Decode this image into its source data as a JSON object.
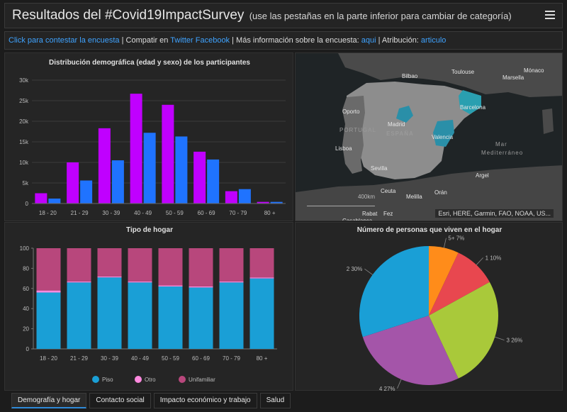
{
  "header": {
    "title": "Resultados del #Covid19ImpactSurvey",
    "subtitle": "(use las pestañas en la parte inferior para cambiar de categoría)"
  },
  "infobar": {
    "link_answer": "Click para contestar la encuesta",
    "sep1": " | Compatir en ",
    "link_twitter": "Twitter",
    "space": " ",
    "link_facebook": "Facebook",
    "sep2": " | Más información sobre la encuesta: ",
    "link_more": "aqui",
    "sep3": " | Atribución: ",
    "link_article": "articulo"
  },
  "map": {
    "labels": [
      "Toulouse",
      "Mónaco",
      "Bilbao",
      "Marsella",
      "Oporto",
      "Barcelona",
      "PORTUGAL",
      "Madrid",
      "ESPAÑA",
      "Valencia",
      "Lisboa",
      "Mar",
      "Mediterráneo",
      "Argel",
      "Sevilla",
      "Ceuta",
      "Orán",
      "Melilla",
      "Rabat",
      "Casablanca",
      "Fez"
    ],
    "scale": "400km",
    "attribution": "Esri, HERE, Garmin, FAO, NOAA, US..."
  },
  "chart_data": [
    {
      "type": "bar",
      "title": "Distribución demográfica (edad y sexo) de los participantes",
      "categories": [
        "18 - 20",
        "21 - 29",
        "30 - 39",
        "40 - 49",
        "50 - 59",
        "60 - 69",
        "70 - 79",
        "80 +"
      ],
      "series": [
        {
          "color": "#c000ff",
          "values": [
            2500,
            10000,
            18300,
            26700,
            24000,
            12600,
            3000,
            400
          ]
        },
        {
          "color": "#1f73ff",
          "values": [
            1200,
            5600,
            10500,
            17200,
            16300,
            10700,
            3500,
            400
          ]
        }
      ],
      "yticks": [
        "0",
        "5k",
        "10k",
        "15k",
        "20k",
        "25k",
        "30k"
      ],
      "ylim": [
        0,
        30000
      ],
      "grid": true
    },
    {
      "type": "bar",
      "stacked": true,
      "title": "Tipo de hogar",
      "categories": [
        "18 - 20",
        "21 - 29",
        "30 - 39",
        "40 - 49",
        "50 - 59",
        "60 - 69",
        "70 - 79",
        "80 +"
      ],
      "series": [
        {
          "name": "Piso",
          "color": "#1a9fd6",
          "values": [
            56,
            66,
            71,
            66,
            62,
            61,
            66,
            70
          ]
        },
        {
          "name": "Otro",
          "color": "#ff8adf",
          "values": [
            2,
            1,
            1,
            1,
            1,
            1,
            1,
            1
          ]
        },
        {
          "name": "Unifamiliar",
          "color": "#b8477c",
          "values": [
            42,
            33,
            28,
            33,
            37,
            38,
            33,
            29
          ]
        }
      ],
      "yticks": [
        "0",
        "20",
        "40",
        "60",
        "80",
        "100"
      ],
      "ylim": [
        0,
        100
      ],
      "legend": "bottom"
    },
    {
      "type": "pie",
      "title": "Número de personas que viven en el hogar",
      "slices": [
        {
          "label": "5+ 7%",
          "value": 7,
          "color": "#ff8c1a"
        },
        {
          "label": "1 10%",
          "value": 10,
          "color": "#e8474f"
        },
        {
          "label": "3 26%",
          "value": 26,
          "color": "#a9c93a"
        },
        {
          "label": "4 27%",
          "value": 27,
          "color": "#a455a9"
        },
        {
          "label": "2 30%",
          "value": 30,
          "color": "#1a9fd6"
        }
      ]
    }
  ],
  "tabs": [
    "Demografía y hogar",
    "Contacto social",
    "Impacto económico y trabajo",
    "Salud"
  ]
}
